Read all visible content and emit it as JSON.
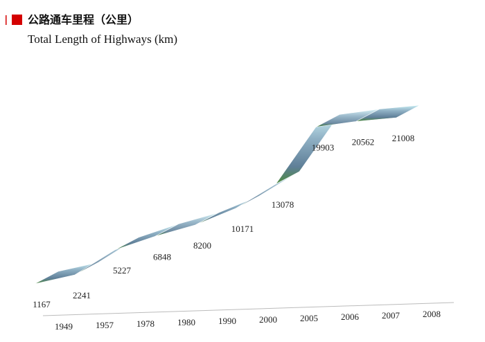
{
  "chart_data": {
    "type": "ribbon",
    "title": "公路通车里程（公里）",
    "subtitle": "Total Length of Highways (km)",
    "categories": [
      "1949",
      "1957",
      "1978",
      "1980",
      "1990",
      "2000",
      "2005",
      "2006",
      "2007",
      "2008"
    ],
    "values": [
      1167,
      2241,
      5227,
      6848,
      8200,
      10171,
      13078,
      19903,
      20562,
      21008
    ]
  }
}
